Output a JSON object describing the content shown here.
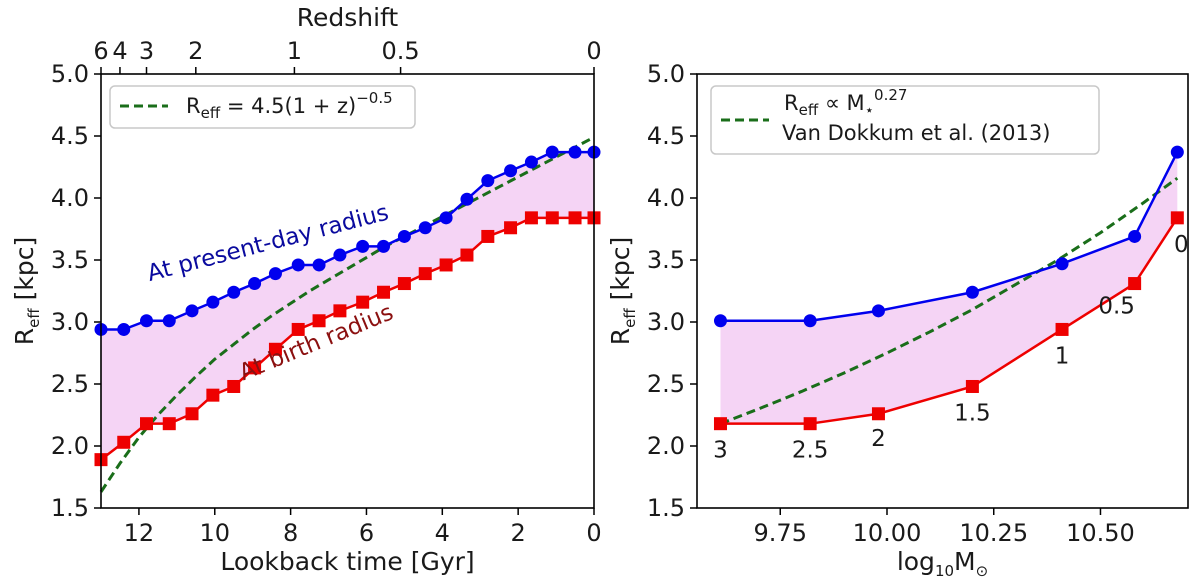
{
  "chart_data": [
    {
      "type": "line",
      "panel": "left",
      "xlabel": "Lookback time [Gyr]",
      "ylabel_main": "R",
      "ylabel_sub": "eff",
      "ylabel_unit": " [kpc]",
      "x_axis_inverted": true,
      "xlim": [
        13.0,
        0.0
      ],
      "ylim": [
        1.5,
        5.0
      ],
      "x_ticks": [
        {
          "value": 12,
          "label": "12"
        },
        {
          "value": 10,
          "label": "10"
        },
        {
          "value": 8,
          "label": "8"
        },
        {
          "value": 6,
          "label": "6"
        },
        {
          "value": 4,
          "label": "4"
        },
        {
          "value": 2,
          "label": "2"
        },
        {
          "value": 0,
          "label": "0"
        }
      ],
      "y_ticks": [
        {
          "value": 1.5,
          "label": "1.5"
        },
        {
          "value": 2.0,
          "label": "2.0"
        },
        {
          "value": 2.5,
          "label": "2.5"
        },
        {
          "value": 3.0,
          "label": "3.0"
        },
        {
          "value": 3.5,
          "label": "3.5"
        },
        {
          "value": 4.0,
          "label": "4.0"
        },
        {
          "value": 4.5,
          "label": "4.5"
        },
        {
          "value": 5.0,
          "label": "5.0"
        }
      ],
      "top_axis": {
        "label": "Redshift",
        "ticks": [
          {
            "value": 13.0,
            "label": "6"
          },
          {
            "value": 12.5,
            "label": "4"
          },
          {
            "value": 11.8,
            "label": "3"
          },
          {
            "value": 10.5,
            "label": "2"
          },
          {
            "value": 7.9,
            "label": "1"
          },
          {
            "value": 5.1,
            "label": "0.5"
          },
          {
            "value": 0.0,
            "label": "0"
          }
        ]
      },
      "series": [
        {
          "name": "At present-day radius",
          "color": "#0000ee",
          "marker": "circle",
          "x": [
            13.0,
            12.4,
            11.8,
            11.2,
            10.6,
            10.05,
            9.5,
            8.95,
            8.4,
            7.8,
            7.25,
            6.7,
            6.1,
            5.55,
            5.0,
            4.45,
            3.9,
            3.35,
            2.8,
            2.2,
            1.65,
            1.1,
            0.5,
            0.0
          ],
          "y": [
            2.94,
            2.94,
            3.01,
            3.01,
            3.09,
            3.16,
            3.24,
            3.31,
            3.39,
            3.46,
            3.46,
            3.54,
            3.61,
            3.61,
            3.69,
            3.76,
            3.84,
            3.99,
            4.14,
            4.22,
            4.29,
            4.37,
            4.37,
            4.37
          ]
        },
        {
          "name": "At birth radius",
          "color": "#ee0000",
          "marker": "square",
          "x": [
            13.0,
            12.4,
            11.8,
            11.2,
            10.6,
            10.05,
            9.5,
            8.95,
            8.4,
            7.8,
            7.25,
            6.7,
            6.1,
            5.55,
            5.0,
            4.45,
            3.9,
            3.35,
            2.8,
            2.2,
            1.65,
            1.1,
            0.5,
            0.0
          ],
          "y": [
            1.89,
            2.03,
            2.18,
            2.18,
            2.26,
            2.41,
            2.48,
            2.63,
            2.78,
            2.94,
            3.01,
            3.09,
            3.16,
            3.24,
            3.31,
            3.39,
            3.46,
            3.54,
            3.69,
            3.76,
            3.84,
            3.84,
            3.84,
            3.84
          ]
        }
      ],
      "fit_curve": {
        "label": "R_eff = 4.5(1 + z)^-0.5",
        "label_prefix": "R",
        "label_sub": "eff",
        "label_mid": " = 4.5(1 + z)",
        "label_sup": "−0.5",
        "color": "#1a6e1a",
        "style": "dashed",
        "x": [
          13.0,
          12.5,
          12.0,
          11.5,
          11.0,
          10.5,
          10.0,
          9.5,
          9.0,
          8.5,
          8.0,
          7.5,
          7.0,
          6.5,
          6.0,
          5.5,
          5.0,
          4.5,
          4.0,
          3.5,
          3.0,
          2.5,
          2.0,
          1.5,
          1.0,
          0.5,
          0.0
        ],
        "y": [
          1.63,
          1.86,
          2.07,
          2.25,
          2.41,
          2.56,
          2.7,
          2.82,
          2.94,
          3.05,
          3.15,
          3.25,
          3.34,
          3.43,
          3.52,
          3.61,
          3.69,
          3.77,
          3.85,
          3.93,
          4.01,
          4.09,
          4.17,
          4.25,
          4.33,
          4.41,
          4.49
        ]
      },
      "shaded_region": {
        "color": "#f5d4f5",
        "between": [
          "At present-day radius",
          "At birth radius"
        ]
      },
      "annotations": [
        {
          "text": "At present-day radius",
          "color": "#0a0a9e",
          "x": 8.55,
          "y": 3.58,
          "rotation": -14.5
        },
        {
          "text": "At birth radius",
          "color": "#8b1010",
          "x": 7.25,
          "y": 2.78,
          "rotation": -22.5
        }
      ],
      "legend_position": "top-left"
    },
    {
      "type": "line",
      "panel": "right",
      "xlabel_main": "log",
      "xlabel_sub1": "10",
      "xlabel_mid": "M",
      "xlabel_sub2": "⊙",
      "ylabel_main": "R",
      "ylabel_sub": "eff",
      "ylabel_unit": " [kpc]",
      "xlim": [
        9.555,
        10.705
      ],
      "ylim": [
        1.5,
        5.0
      ],
      "x_ticks": [
        {
          "value": 9.75,
          "label": "9.75"
        },
        {
          "value": 10.0,
          "label": "10.00"
        },
        {
          "value": 10.25,
          "label": "10.25"
        },
        {
          "value": 10.5,
          "label": "10.50"
        }
      ],
      "y_ticks": [
        {
          "value": 1.5,
          "label": "1.5"
        },
        {
          "value": 2.0,
          "label": "2.0"
        },
        {
          "value": 2.5,
          "label": "2.5"
        },
        {
          "value": 3.0,
          "label": "3.0"
        },
        {
          "value": 3.5,
          "label": "3.5"
        },
        {
          "value": 4.0,
          "label": "4.0"
        },
        {
          "value": 4.5,
          "label": "4.5"
        },
        {
          "value": 5.0,
          "label": "5.0"
        }
      ],
      "series": [
        {
          "name": "At present-day radius",
          "color": "#0000ee",
          "marker": "circle",
          "x": [
            9.61,
            9.82,
            9.98,
            10.2,
            10.41,
            10.58,
            10.68
          ],
          "y": [
            3.01,
            3.01,
            3.09,
            3.24,
            3.47,
            3.69,
            4.37
          ]
        },
        {
          "name": "At birth radius",
          "color": "#ee0000",
          "marker": "square",
          "x": [
            9.61,
            9.82,
            9.98,
            10.2,
            10.41,
            10.58,
            10.68
          ],
          "y": [
            2.18,
            2.18,
            2.26,
            2.48,
            2.94,
            3.31,
            3.84
          ]
        }
      ],
      "fit_curve": {
        "label": "R_eff ∝ M_*^0.27",
        "label_prefix": "R",
        "label_sub": "eff",
        "label_mid": " ∝ M",
        "label_sub2": "⋆",
        "label_sup": "0.27",
        "label_line2": "Van Dokkum et al. (2013)",
        "color": "#1a6e1a",
        "style": "dashed",
        "x": [
          9.61,
          9.7,
          9.8,
          9.9,
          10.0,
          10.1,
          10.2,
          10.3,
          10.4,
          10.5,
          10.6,
          10.68
        ],
        "y": [
          2.18,
          2.3,
          2.44,
          2.59,
          2.75,
          2.92,
          3.1,
          3.3,
          3.5,
          3.72,
          3.96,
          4.16
        ]
      },
      "shaded_region": {
        "color": "#f5d4f5",
        "between": [
          "At present-day radius",
          "At birth radius"
        ]
      },
      "redshift_labels": [
        {
          "text": "3",
          "x": 9.61,
          "y": 2.18
        },
        {
          "text": "2.5",
          "x": 9.82,
          "y": 2.18
        },
        {
          "text": "2",
          "x": 9.98,
          "y": 2.26
        },
        {
          "text": "1.5",
          "x": 10.2,
          "y": 2.48
        },
        {
          "text": "1",
          "x": 10.41,
          "y": 2.94
        },
        {
          "text": "0.5",
          "x": 10.58,
          "y": 3.31
        },
        {
          "text": "0",
          "x": 10.68,
          "y": 3.84
        }
      ],
      "legend_position": "top-left"
    }
  ]
}
